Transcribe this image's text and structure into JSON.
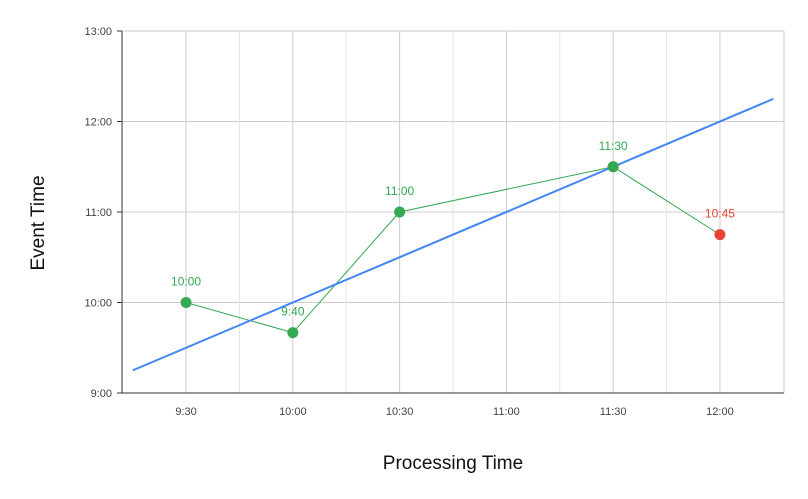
{
  "chart_data": {
    "type": "scatter",
    "xlabel": "Processing Time",
    "ylabel": "Event Time",
    "x_ticks": [
      "9:30",
      "10:00",
      "10:30",
      "11:00",
      "11:30",
      "12:00"
    ],
    "y_ticks": [
      "9:00",
      "10:00",
      "11:00",
      "12:00",
      "13:00"
    ],
    "xlim": [
      "9:12",
      "12:18"
    ],
    "ylim": [
      "9:00",
      "13:00"
    ],
    "grid": true,
    "legend": "none",
    "series": [
      {
        "kind": "line-with-markers",
        "color": "#34a853",
        "points": [
          {
            "x": "9:30",
            "y": "10:00",
            "label": "10:00",
            "color": "#34a853"
          },
          {
            "x": "10:00",
            "y": "9:40",
            "label": "9:40",
            "color": "#34a853"
          },
          {
            "x": "10:30",
            "y": "11:00",
            "label": "11:00",
            "color": "#34a853"
          },
          {
            "x": "11:30",
            "y": "11:30",
            "label": "11:30",
            "color": "#34a853"
          }
        ]
      },
      {
        "kind": "line-with-markers",
        "color": "#34a853",
        "points": [
          {
            "x": "11:30",
            "y": "11:30",
            "label": "",
            "color": "#34a853"
          },
          {
            "x": "12:00",
            "y": "10:45",
            "label": "10:45",
            "color": "#ea4335"
          }
        ]
      },
      {
        "kind": "line",
        "color": "#4285f4",
        "points": [
          {
            "x": "9:15",
            "y": "9:15"
          },
          {
            "x": "12:15",
            "y": "12:15"
          }
        ]
      }
    ]
  }
}
